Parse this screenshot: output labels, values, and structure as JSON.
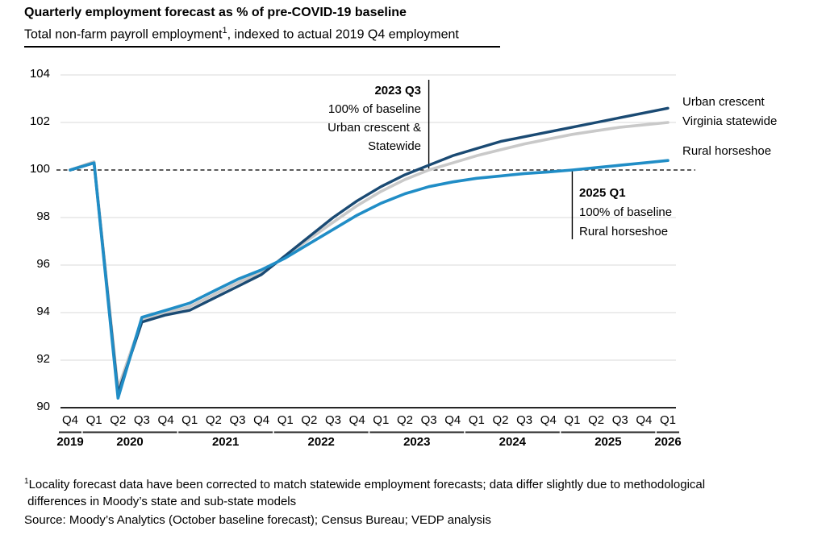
{
  "header": {
    "title": "Quarterly employment forecast as % of pre-COVID-19 baseline",
    "subtitle_pre": "Total non-farm payroll employment",
    "subtitle_sup": "1",
    "subtitle_post": ", indexed to actual 2019 Q4 employment"
  },
  "chart_data": {
    "type": "line",
    "title": "Quarterly employment forecast as % of pre-COVID-19 baseline",
    "ylabel": "",
    "xlabel": "",
    "ylim": [
      90,
      104
    ],
    "yticks": [
      104,
      102,
      100,
      98,
      96,
      94,
      92,
      90
    ],
    "baseline_value": 100,
    "grid": "horizontal",
    "legend_position": "right-end",
    "x_years": [
      {
        "label": "2019",
        "quarters": [
          "Q4"
        ]
      },
      {
        "label": "2020",
        "quarters": [
          "Q1",
          "Q2",
          "Q3",
          "Q4"
        ]
      },
      {
        "label": "2021",
        "quarters": [
          "Q1",
          "Q2",
          "Q3",
          "Q4"
        ]
      },
      {
        "label": "2022",
        "quarters": [
          "Q1",
          "Q2",
          "Q3",
          "Q4"
        ]
      },
      {
        "label": "2023",
        "quarters": [
          "Q1",
          "Q2",
          "Q3",
          "Q4"
        ]
      },
      {
        "label": "2024",
        "quarters": [
          "Q1",
          "Q2",
          "Q3",
          "Q4"
        ]
      },
      {
        "label": "2025",
        "quarters": [
          "Q1",
          "Q2",
          "Q3",
          "Q4"
        ]
      },
      {
        "label": "2026",
        "quarters": [
          "Q1"
        ]
      }
    ],
    "series": [
      {
        "name": "Urban crescent",
        "color": "#1a4a73",
        "values": [
          100.0,
          100.3,
          90.6,
          93.6,
          93.9,
          94.1,
          94.6,
          95.1,
          95.6,
          96.4,
          97.2,
          98.0,
          98.7,
          99.3,
          99.8,
          100.2,
          100.6,
          100.9,
          101.2,
          101.4,
          101.6,
          101.8,
          102.0,
          102.2,
          102.4,
          102.6
        ]
      },
      {
        "name": "Virginia statewide",
        "color": "#c9c9c9",
        "values": [
          100.0,
          100.35,
          90.8,
          93.7,
          94.0,
          94.25,
          94.75,
          95.25,
          95.7,
          96.35,
          97.1,
          97.8,
          98.5,
          99.1,
          99.6,
          100.0,
          100.3,
          100.6,
          100.85,
          101.1,
          101.3,
          101.5,
          101.65,
          101.8,
          101.9,
          102.0
        ]
      },
      {
        "name": "Rural horseshoe",
        "color": "#208dc6",
        "values": [
          100.0,
          100.3,
          90.4,
          93.8,
          94.1,
          94.4,
          94.9,
          95.4,
          95.8,
          96.3,
          96.9,
          97.5,
          98.1,
          98.6,
          99.0,
          99.3,
          99.5,
          99.65,
          99.75,
          99.85,
          99.92,
          100.0,
          100.1,
          100.2,
          100.3,
          100.4
        ]
      }
    ]
  },
  "annotations": [
    {
      "title": "2023 Q3",
      "l1": "100% of baseline",
      "l2": "Urban crescent &",
      "l3": "Statewide",
      "quarter_index": 15
    },
    {
      "title": "2025 Q1",
      "l1": "100% of baseline",
      "l2": "Rural horseshoe",
      "quarter_index": 21
    }
  ],
  "footnotes": {
    "sup": "1",
    "line1": "Locality forecast data have been corrected to match statewide employment forecasts; data differ slightly due to methodological",
    "line2": " differences in Moody’s state and sub-state models",
    "source": "Source: Moody’s Analytics (October baseline forecast); Census Bureau; VEDP analysis"
  }
}
